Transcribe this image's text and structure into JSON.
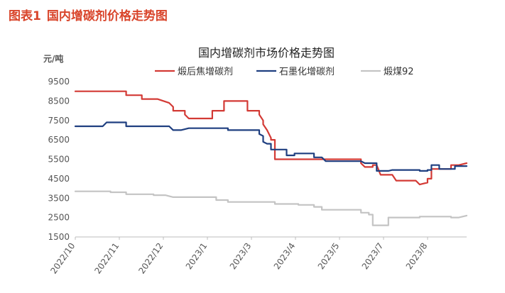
{
  "figure": {
    "label": "图表1",
    "caption": "国内增碳剂价格走势图"
  },
  "chart_data": {
    "type": "line",
    "title": "国内增碳剂市场价格走势图",
    "ylabel": "元/吨",
    "ylim": [
      1500,
      9500
    ],
    "yticks": [
      1500,
      2500,
      3500,
      4500,
      5500,
      6500,
      7500,
      8500,
      9500
    ],
    "xticks": [
      "2022/10",
      "2022/11",
      "2022/12",
      "2023/1",
      "2023/3",
      "2023/4",
      "2023/5",
      "2023/7",
      "2023/8"
    ],
    "x_index_range": [
      0,
      100
    ],
    "legend_position": "top",
    "grid": false,
    "series": [
      {
        "name": "煅后焦增碳剂",
        "color": "#d33a35",
        "points": [
          [
            0,
            9000
          ],
          [
            13,
            9000
          ],
          [
            13,
            8800
          ],
          [
            17,
            8800
          ],
          [
            17,
            8600
          ],
          [
            21,
            8600
          ],
          [
            24,
            8400
          ],
          [
            25,
            8200
          ],
          [
            25,
            8000
          ],
          [
            26,
            8000
          ],
          [
            28,
            8000
          ],
          [
            28,
            7800
          ],
          [
            29,
            7600
          ],
          [
            35,
            7600
          ],
          [
            35,
            8000
          ],
          [
            38,
            8000
          ],
          [
            38,
            8500
          ],
          [
            44,
            8500
          ],
          [
            44,
            8000
          ],
          [
            47,
            8000
          ],
          [
            47,
            7800
          ],
          [
            48,
            7500
          ],
          [
            48,
            7300
          ],
          [
            49,
            7000
          ],
          [
            50,
            6600
          ],
          [
            50,
            6500
          ],
          [
            51,
            6500
          ],
          [
            51,
            5500
          ],
          [
            57,
            5500
          ],
          [
            62,
            5500
          ],
          [
            73,
            5500
          ],
          [
            73,
            5300
          ],
          [
            74,
            5100
          ],
          [
            76,
            5100
          ],
          [
            76,
            5200
          ],
          [
            77,
            5200
          ],
          [
            78,
            4700
          ],
          [
            81,
            4700
          ],
          [
            82,
            4400
          ],
          [
            87,
            4400
          ],
          [
            88,
            4200
          ],
          [
            89,
            4250
          ],
          [
            90,
            4300
          ],
          [
            90,
            4500
          ],
          [
            91,
            4500
          ],
          [
            91,
            5000
          ],
          [
            96,
            5000
          ],
          [
            96,
            5200
          ],
          [
            98,
            5200
          ],
          [
            100,
            5300
          ]
        ]
      },
      {
        "name": "石墨化增碳剂",
        "color": "#1f3f80",
        "points": [
          [
            0,
            7200
          ],
          [
            7,
            7200
          ],
          [
            8,
            7400
          ],
          [
            13,
            7400
          ],
          [
            13,
            7200
          ],
          [
            24,
            7200
          ],
          [
            25,
            7000
          ],
          [
            27,
            7000
          ],
          [
            29,
            7100
          ],
          [
            39,
            7100
          ],
          [
            39,
            7000
          ],
          [
            47,
            7000
          ],
          [
            47,
            6800
          ],
          [
            48,
            6700
          ],
          [
            48,
            6400
          ],
          [
            49,
            6300
          ],
          [
            50,
            6300
          ],
          [
            50,
            6000
          ],
          [
            54,
            6000
          ],
          [
            54,
            5700
          ],
          [
            56,
            5700
          ],
          [
            56,
            5800
          ],
          [
            61,
            5800
          ],
          [
            61,
            5600
          ],
          [
            63,
            5600
          ],
          [
            64,
            5400
          ],
          [
            73,
            5400
          ],
          [
            74,
            5300
          ],
          [
            77,
            5300
          ],
          [
            77,
            4900
          ],
          [
            78,
            4900
          ],
          [
            80,
            4900
          ],
          [
            81,
            4950
          ],
          [
            88,
            4950
          ],
          [
            88,
            4900
          ],
          [
            90,
            4900
          ],
          [
            90,
            4950
          ],
          [
            91,
            4950
          ],
          [
            91,
            5200
          ],
          [
            93,
            5200
          ],
          [
            93,
            5000
          ],
          [
            97,
            5000
          ],
          [
            97,
            5150
          ],
          [
            100,
            5150
          ]
        ]
      },
      {
        "name": "煅煤92",
        "color": "#c4c4c4",
        "points": [
          [
            0,
            3850
          ],
          [
            9,
            3850
          ],
          [
            9,
            3800
          ],
          [
            13,
            3800
          ],
          [
            13,
            3700
          ],
          [
            20,
            3700
          ],
          [
            20,
            3650
          ],
          [
            23,
            3650
          ],
          [
            25,
            3550
          ],
          [
            36,
            3550
          ],
          [
            36,
            3400
          ],
          [
            39,
            3400
          ],
          [
            39,
            3300
          ],
          [
            51,
            3300
          ],
          [
            51,
            3200
          ],
          [
            57,
            3200
          ],
          [
            57,
            3150
          ],
          [
            61,
            3150
          ],
          [
            61,
            3050
          ],
          [
            63,
            3050
          ],
          [
            63,
            2900
          ],
          [
            73,
            2900
          ],
          [
            73,
            2750
          ],
          [
            75,
            2750
          ],
          [
            75,
            2650
          ],
          [
            76,
            2650
          ],
          [
            76,
            2100
          ],
          [
            80,
            2100
          ],
          [
            80,
            2500
          ],
          [
            88,
            2500
          ],
          [
            88,
            2550
          ],
          [
            96,
            2550
          ],
          [
            96,
            2500
          ],
          [
            98,
            2500
          ],
          [
            100,
            2600
          ]
        ]
      }
    ]
  }
}
